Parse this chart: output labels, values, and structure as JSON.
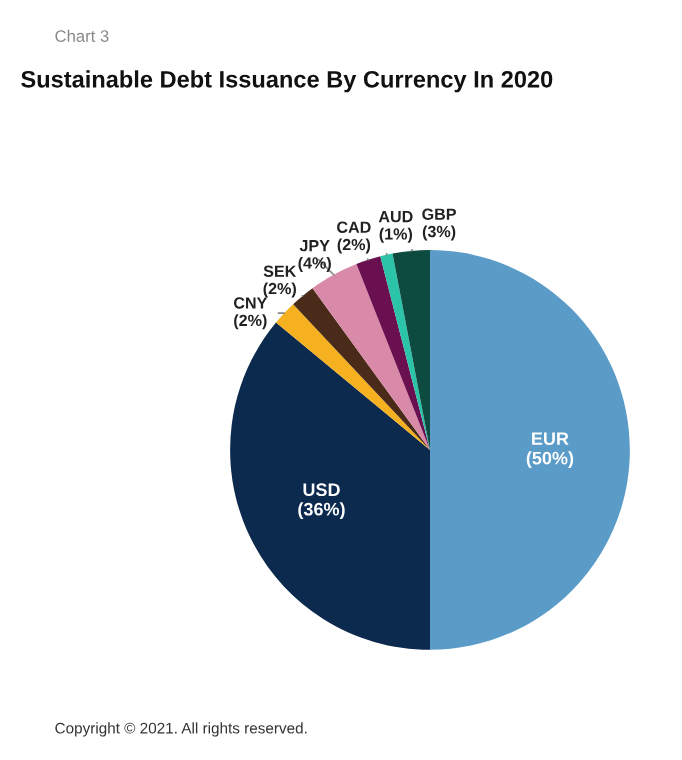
{
  "chart_data": {
    "type": "pie",
    "title": "Sustainable Debt Issuance By Currency In 2020",
    "categories": [
      "EUR",
      "USD",
      "CNY",
      "SEK",
      "JPY",
      "CAD",
      "AUD",
      "GBP"
    ],
    "values": [
      50,
      36,
      2,
      2,
      4,
      2,
      1,
      3
    ],
    "value_labels": [
      "(50%)",
      "(36%)",
      "(2%)",
      "(2%)",
      "(4%)",
      "(2%)",
      "(1%)",
      "(3%)"
    ],
    "colors": [
      "#5b9bc8",
      "#0c2a4e",
      "#f5b120",
      "#4a2a18",
      "#d98aa8",
      "#6a0f4f",
      "#2cc4a8",
      "#0d4a40"
    ],
    "annotations": [
      "Chart 3",
      "Copyright © 2021. All rights reserved."
    ]
  }
}
